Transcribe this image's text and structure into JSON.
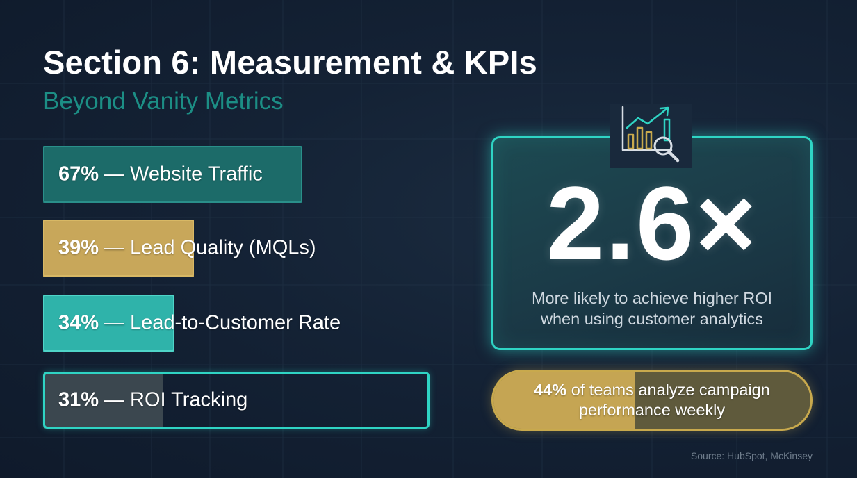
{
  "slide": {
    "title": "Section 6: Measurement & KPIs",
    "subtitle": "Beyond Vanity Metrics",
    "source": "Source: HubSpot, McKinsey"
  },
  "chart_data": {
    "type": "bar",
    "orientation": "horizontal",
    "title": "",
    "categories": [
      "Website Traffic",
      "Lead Quality (MQLs)",
      "Lead-to-Customer Rate",
      "ROI Tracking"
    ],
    "values": [
      67,
      39,
      34,
      31
    ],
    "value_labels": [
      "67%",
      "39%",
      "34%",
      "31%"
    ],
    "separator": "—",
    "unit": "%",
    "xlim": [
      0,
      100
    ],
    "grid": false,
    "colors": [
      "#1c6b69",
      "#c8a75a",
      "#2fb3aa",
      "#3b474f"
    ],
    "outline_colors": [
      "#2a8f8a",
      "#d8b865",
      "#4fd4c8",
      "#2fd4c4"
    ]
  },
  "highlight_stat": {
    "value": "2.6×",
    "caption_line1": "More likely to achieve higher ROI",
    "caption_line2": "when using customer analytics",
    "icon": "analytics-chart-magnifier-icon",
    "accent_color": "#2fd4c4"
  },
  "weekly_stat": {
    "percent_label": "44%",
    "percent": 44,
    "text_line1": "of teams analyze campaign",
    "text_line2": "performance weekly",
    "color": "#c8a94d"
  }
}
